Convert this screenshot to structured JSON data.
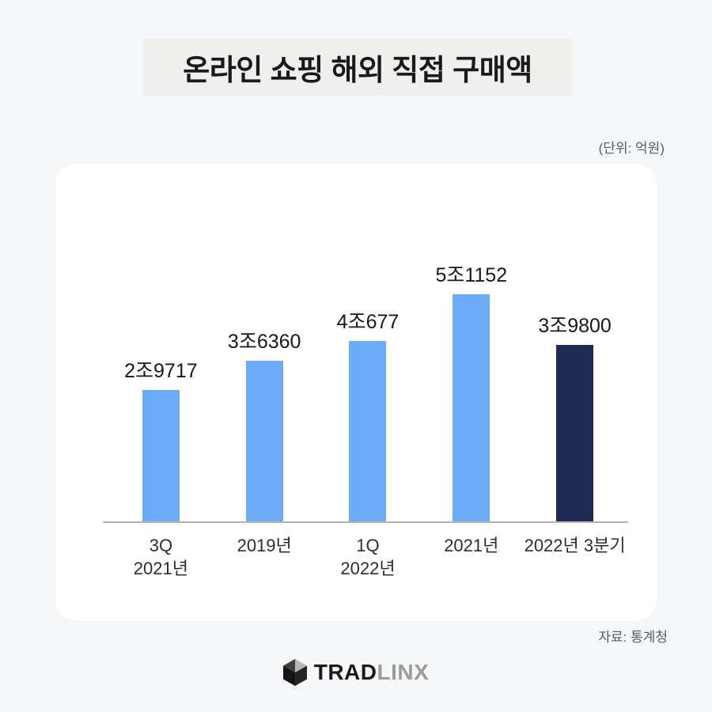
{
  "page": {
    "background_color": "#f6f7f9"
  },
  "header": {
    "title": "온라인 쇼핑 해외 직접 구매액",
    "title_box_color": "#efefed"
  },
  "unit_label": "(단위: 억원)",
  "source_label": "자료: 통계청",
  "logo": {
    "icon": "cube-icon",
    "text_primary": "TRAD",
    "text_secondary": "LINX"
  },
  "colors": {
    "bar_default": "#6babf7",
    "bar_highlight": "#1f2b52",
    "axis": "#b3b3b3"
  },
  "chart_data": {
    "type": "bar",
    "title": "온라인 쇼핑 해외 직접 구매액",
    "unit": "억원",
    "source": "통계청",
    "categories": [
      "3Q 2021년",
      "2019년",
      "1Q 2022년",
      "2021년",
      "2022년 3분기"
    ],
    "category_lines": [
      [
        "3Q",
        "2021년"
      ],
      [
        "2019년"
      ],
      [
        "1Q",
        "2022년"
      ],
      [
        "2021년"
      ],
      [
        "2022년 3분기"
      ]
    ],
    "values": [
      29717,
      36360,
      40677,
      51152,
      39800
    ],
    "value_labels": [
      "2조9717",
      "3조6360",
      "4조677",
      "5조1152",
      "3조9800"
    ],
    "bar_colors": [
      "#6babf7",
      "#6babf7",
      "#6babf7",
      "#6babf7",
      "#1f2b52"
    ],
    "ylim": [
      0,
      53000
    ],
    "grid": false,
    "legend": "none",
    "xlabel": "",
    "ylabel": ""
  }
}
